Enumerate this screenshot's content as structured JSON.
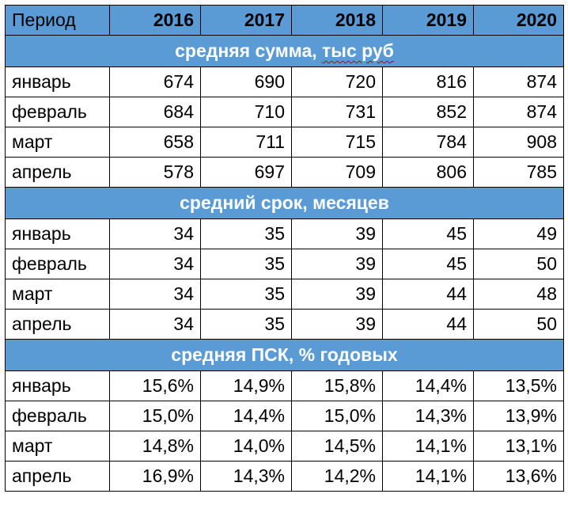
{
  "header": {
    "period_label": "Период",
    "years": [
      "2016",
      "2017",
      "2018",
      "2019",
      "2020"
    ]
  },
  "sections": [
    {
      "title_main": "средняя сумма, ",
      "title_underlined": "тыс руб",
      "rows": [
        {
          "month": "январь",
          "values": [
            "674",
            "690",
            "720",
            "816",
            "874"
          ]
        },
        {
          "month": "февраль",
          "values": [
            "684",
            "710",
            "731",
            "852",
            "874"
          ]
        },
        {
          "month": "март",
          "values": [
            "658",
            "711",
            "715",
            "784",
            "908"
          ]
        },
        {
          "month": "апрель",
          "values": [
            "578",
            "697",
            "709",
            "806",
            "785"
          ]
        }
      ]
    },
    {
      "title_main": "средний срок, месяцев",
      "title_underlined": "",
      "rows": [
        {
          "month": "январь",
          "values": [
            "34",
            "35",
            "39",
            "45",
            "49"
          ]
        },
        {
          "month": "февраль",
          "values": [
            "34",
            "35",
            "39",
            "45",
            "50"
          ]
        },
        {
          "month": "март",
          "values": [
            "34",
            "35",
            "39",
            "44",
            "48"
          ]
        },
        {
          "month": "апрель",
          "values": [
            "34",
            "35",
            "39",
            "44",
            "50"
          ]
        }
      ]
    },
    {
      "title_main": "средняя ПСК, % годовых",
      "title_underlined": "",
      "rows": [
        {
          "month": "январь",
          "values": [
            "15,6%",
            "14,9%",
            "15,8%",
            "14,4%",
            "13,5%"
          ]
        },
        {
          "month": "февраль",
          "values": [
            "15,0%",
            "14,4%",
            "15,0%",
            "14,3%",
            "13,9%"
          ]
        },
        {
          "month": "март",
          "values": [
            "14,8%",
            "14,0%",
            "14,5%",
            "14,1%",
            "13,1%"
          ]
        },
        {
          "month": "апрель",
          "values": [
            "16,9%",
            "14,3%",
            "14,2%",
            "14,1%",
            "13,6%"
          ]
        }
      ]
    }
  ],
  "colors": {
    "header_fill": "#5b9bd5",
    "section_text": "#ffffff",
    "border": "#000000"
  }
}
